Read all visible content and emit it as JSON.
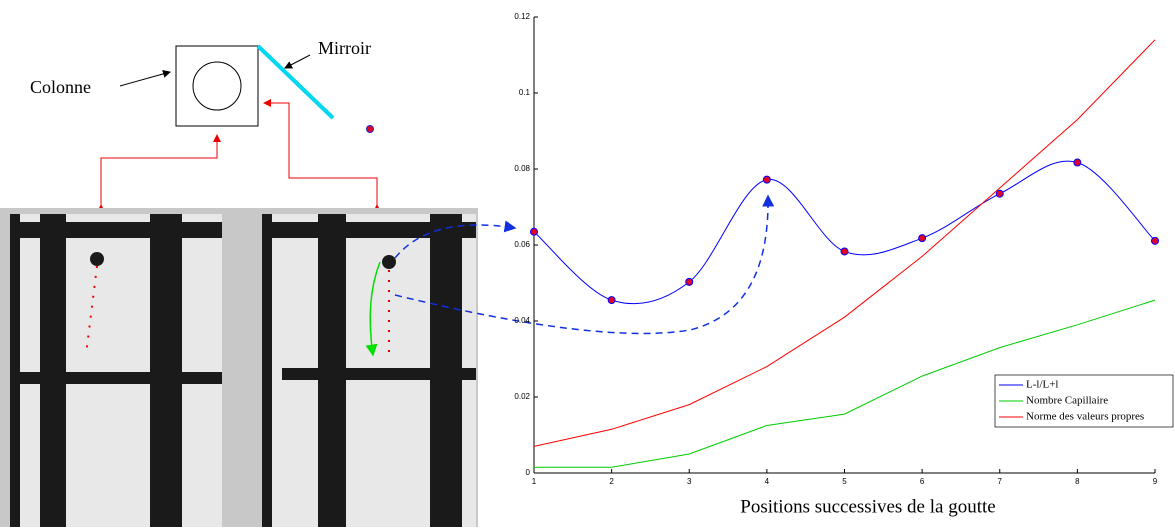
{
  "diagram": {
    "labels": [
      "Colonne",
      "Mirroir"
    ]
  },
  "chart_data": {
    "type": "line",
    "xlabel": "Positions successives de la goutte",
    "x": [
      1,
      2,
      3,
      4,
      5,
      6,
      7,
      8,
      9
    ],
    "xlim": [
      1,
      9
    ],
    "xticks": [
      1,
      2,
      3,
      4,
      5,
      6,
      7,
      8,
      9
    ],
    "ylim": [
      0,
      0.12
    ],
    "yticks": [
      0,
      0.02,
      0.04,
      0.06,
      0.08,
      0.1,
      0.12
    ],
    "legend": "lower right",
    "series": [
      {
        "name": "L-l/L+l",
        "color": "#0000ff",
        "marker_color": "#e0002a",
        "smooth": true,
        "values": [
          0.0635,
          0.0455,
          0.0503,
          0.0772,
          0.0583,
          0.0618,
          0.0735,
          0.0817,
          0.0611
        ]
      },
      {
        "name": "Nombre Capillaire",
        "color": "#00cc00",
        "values": [
          0.0015,
          0.0015,
          0.005,
          0.0125,
          0.0155,
          0.0255,
          0.033,
          0.039,
          0.0455
        ]
      },
      {
        "name": "Norme des valeurs propres",
        "color": "#ff0000",
        "values": [
          0.007,
          0.0115,
          0.018,
          0.028,
          0.041,
          0.057,
          0.075,
          0.093,
          0.114
        ]
      }
    ]
  }
}
